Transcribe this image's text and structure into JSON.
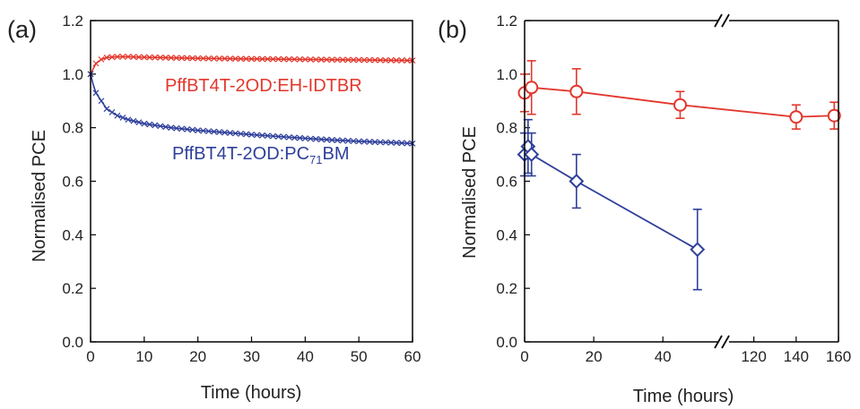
{
  "colors": {
    "red": "#e2372c",
    "blue": "#2e3f9a",
    "axis": "#000000"
  },
  "chart_data": [
    {
      "panel_label": "(a)",
      "type": "line",
      "xlabel": "Time (hours)",
      "ylabel": "Normalised PCE",
      "xlim": [
        0,
        60
      ],
      "ylim": [
        0,
        1.2
      ],
      "x_ticks": [
        "0",
        "10",
        "20",
        "30",
        "40",
        "50",
        "60"
      ],
      "y_ticks": [
        "0.0",
        "0.2",
        "0.4",
        "0.6",
        "0.8",
        "1.0",
        "1.2"
      ],
      "grid": false,
      "series": [
        {
          "name": "PffBT4T-2OD:EH-IDTBR",
          "color": "red",
          "marker": "cross",
          "x": [
            0,
            0.5,
            1,
            2,
            3,
            5,
            7,
            10,
            15,
            20,
            25,
            30,
            35,
            40,
            45,
            50,
            55,
            60
          ],
          "y": [
            1.0,
            1.02,
            1.04,
            1.055,
            1.062,
            1.065,
            1.065,
            1.063,
            1.061,
            1.059,
            1.058,
            1.057,
            1.056,
            1.055,
            1.054,
            1.053,
            1.052,
            1.051
          ]
        },
        {
          "name": "PffBT4T-2OD:PC71BM",
          "name_main": "PffBT4T-2OD:PC",
          "name_sub": "71",
          "name_tail": "BM",
          "color": "blue",
          "marker": "cross",
          "x": [
            0,
            0.5,
            1,
            2,
            3,
            5,
            7,
            10,
            15,
            20,
            25,
            30,
            35,
            40,
            45,
            50,
            55,
            60
          ],
          "y": [
            1.0,
            0.96,
            0.93,
            0.9,
            0.87,
            0.845,
            0.83,
            0.815,
            0.8,
            0.79,
            0.782,
            0.774,
            0.767,
            0.76,
            0.754,
            0.749,
            0.745,
            0.741
          ]
        }
      ]
    },
    {
      "panel_label": "(b)",
      "type": "line",
      "xlabel": "Time (hours)",
      "ylabel": "Normalised PCE",
      "ylim": [
        0,
        1.2
      ],
      "x_axis_broken": true,
      "x_segments": [
        [
          0,
          55
        ],
        [
          110,
          160
        ]
      ],
      "x_ticks": [
        "0",
        "20",
        "40",
        "120",
        "140",
        "160"
      ],
      "y_ticks": [
        "0.0",
        "0.2",
        "0.4",
        "0.6",
        "0.8",
        "1.0",
        "1.2"
      ],
      "grid": false,
      "series": [
        {
          "color": "red",
          "marker": "circle",
          "x": [
            0,
            2,
            15,
            45,
            140,
            158
          ],
          "y": [
            0.93,
            0.95,
            0.935,
            0.885,
            0.84,
            0.845
          ],
          "err": [
            0.07,
            0.1,
            0.085,
            0.05,
            0.045,
            0.05
          ]
        },
        {
          "color": "blue",
          "marker": "diamond",
          "x": [
            0,
            1,
            2,
            15,
            50
          ],
          "y": [
            0.7,
            0.73,
            0.7,
            0.6,
            0.345
          ],
          "err": [
            0.08,
            0.1,
            0.08,
            0.1,
            0.15
          ]
        }
      ]
    }
  ]
}
